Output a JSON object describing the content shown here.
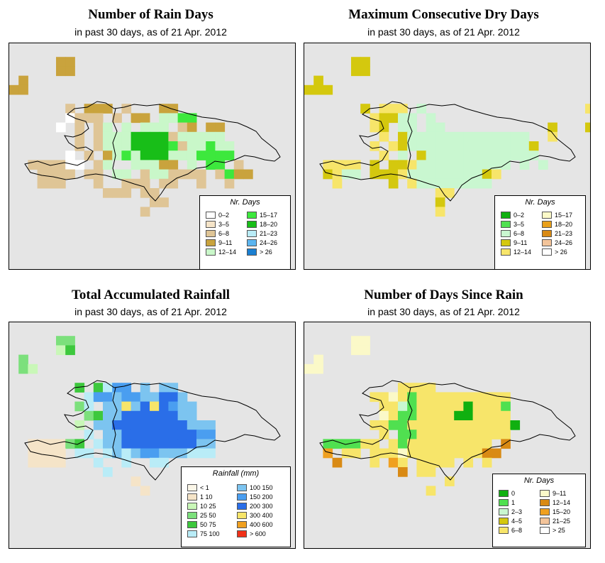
{
  "panels": [
    {
      "title": "Number of Rain Days",
      "subtitle": "in past 30 days, as of  21 Apr. 2012",
      "legend": {
        "title": "Nr. Days",
        "items": [
          {
            "label": "0–2",
            "color": "#ffffff"
          },
          {
            "label": "3–5",
            "color": "#f5e4c8"
          },
          {
            "label": "6–8",
            "color": "#dfc596"
          },
          {
            "label": "9–11",
            "color": "#c9a33d"
          },
          {
            "label": "12–14",
            "color": "#c9f7c9"
          },
          {
            "label": "15–17",
            "color": "#3de83d"
          },
          {
            "label": "18–20",
            "color": "#18be18"
          },
          {
            "label": "21–23",
            "color": "#b9ecf7"
          },
          {
            "label": "24–26",
            "color": "#5cb5ef"
          },
          {
            "label": "> 26",
            "color": "#1a7fd1"
          }
        ]
      }
    },
    {
      "title": "Maximum Consecutive Dry Days",
      "subtitle": "in past 30 days, as of  21 Apr. 2012",
      "legend": {
        "title": "Nr. Days",
        "items": [
          {
            "label": "0–2",
            "color": "#10b010"
          },
          {
            "label": "3–5",
            "color": "#50e050"
          },
          {
            "label": "6–8",
            "color": "#c9f7d0"
          },
          {
            "label": "9–11",
            "color": "#d4c80e"
          },
          {
            "label": "12–14",
            "color": "#f7e56a"
          },
          {
            "label": "15–17",
            "color": "#fbf9c8"
          },
          {
            "label": "18–20",
            "color": "#e8a01a"
          },
          {
            "label": "21–23",
            "color": "#d98a14"
          },
          {
            "label": "24–26",
            "color": "#f3c49a"
          },
          {
            "label": "> 26",
            "color": "#ffffff"
          }
        ]
      }
    },
    {
      "title": "Total Accumulated Rainfall",
      "subtitle": "in past 30 days, as of  21 Apr. 2012",
      "legend": {
        "title": "Rainfall (mm)",
        "items": [
          {
            "label": "< 1",
            "color": "#fbf6e8"
          },
          {
            "label": "1   10",
            "color": "#f5e4c8"
          },
          {
            "label": "10   25",
            "color": "#c9f7b8"
          },
          {
            "label": "25   50",
            "color": "#7ce07c"
          },
          {
            "label": "50   75",
            "color": "#3dc83d"
          },
          {
            "label": "75  100",
            "color": "#b9ecf7"
          },
          {
            "label": "100  150",
            "color": "#7cc4f0"
          },
          {
            "label": "150  200",
            "color": "#4a9ef0"
          },
          {
            "label": "200  300",
            "color": "#2a6ee8"
          },
          {
            "label": "300  400",
            "color": "#f7e56a"
          },
          {
            "label": "400  600",
            "color": "#f0a020"
          },
          {
            "label": "> 600",
            "color": "#f03018"
          }
        ]
      }
    },
    {
      "title": "Number of Days Since Rain",
      "subtitle": "in past 30 days, as of  21 Apr. 2012",
      "legend": {
        "title": "Nr. Days",
        "items": [
          {
            "label": "0",
            "color": "#10b010"
          },
          {
            "label": "1",
            "color": "#50e050"
          },
          {
            "label": "2–3",
            "color": "#c9f7d0"
          },
          {
            "label": "4–5",
            "color": "#d4c80e"
          },
          {
            "label": "6–8",
            "color": "#f7e56a"
          },
          {
            "label": "9–11",
            "color": "#fbf9c8"
          },
          {
            "label": "12–14",
            "color": "#d98a14"
          },
          {
            "label": "15–20",
            "color": "#f0a020"
          },
          {
            "label": "21–25",
            "color": "#f3c49a"
          },
          {
            "label": "> 25",
            "color": "#ffffff"
          }
        ]
      }
    }
  ]
}
